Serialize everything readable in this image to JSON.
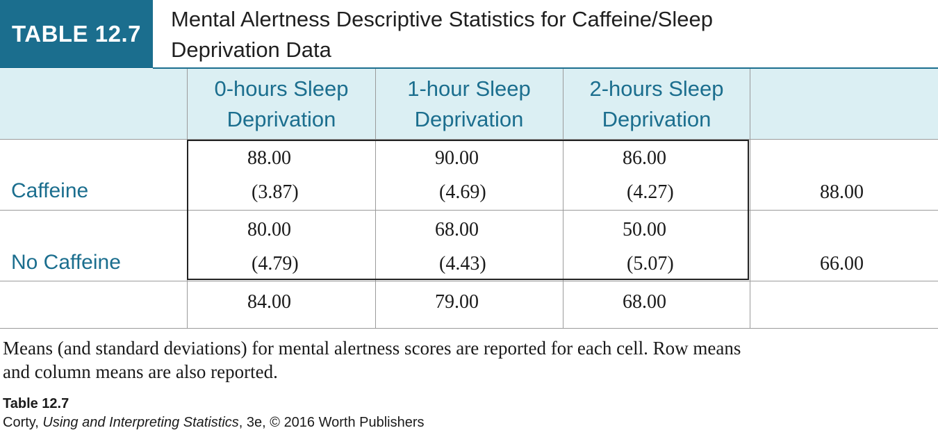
{
  "badge": "TABLE 12.7",
  "title_line1": "Mental Alertness Descriptive Statistics for Caffeine/Sleep",
  "title_line2": "Deprivation Data",
  "columns": [
    {
      "line1": "0-hours Sleep",
      "line2": "Deprivation"
    },
    {
      "line1": "1-hour Sleep",
      "line2": "Deprivation"
    },
    {
      "line1": "2-hours Sleep",
      "line2": "Deprivation"
    }
  ],
  "rows": [
    {
      "label": "Caffeine",
      "cells": [
        {
          "mean": "88.00",
          "sd": "(3.87)"
        },
        {
          "mean": "90.00",
          "sd": "(4.69)"
        },
        {
          "mean": "86.00",
          "sd": "(4.27)"
        }
      ],
      "row_mean": "88.00"
    },
    {
      "label": "No Caffeine",
      "cells": [
        {
          "mean": "80.00",
          "sd": "(4.79)"
        },
        {
          "mean": "68.00",
          "sd": "(4.43)"
        },
        {
          "mean": "50.00",
          "sd": "(5.07)"
        }
      ],
      "row_mean": "66.00"
    }
  ],
  "column_means": [
    "84.00",
    "79.00",
    "68.00"
  ],
  "note_line1": "Means (and standard deviations) for mental alertness scores are reported for each cell. Row means",
  "note_line2": "and column means are also reported.",
  "source_label": "Table 12.7",
  "credit": {
    "author": "Corty, ",
    "book": "Using and Interpreting Statistics",
    "rest": ", 3e, © 2016 Worth Publishers"
  }
}
